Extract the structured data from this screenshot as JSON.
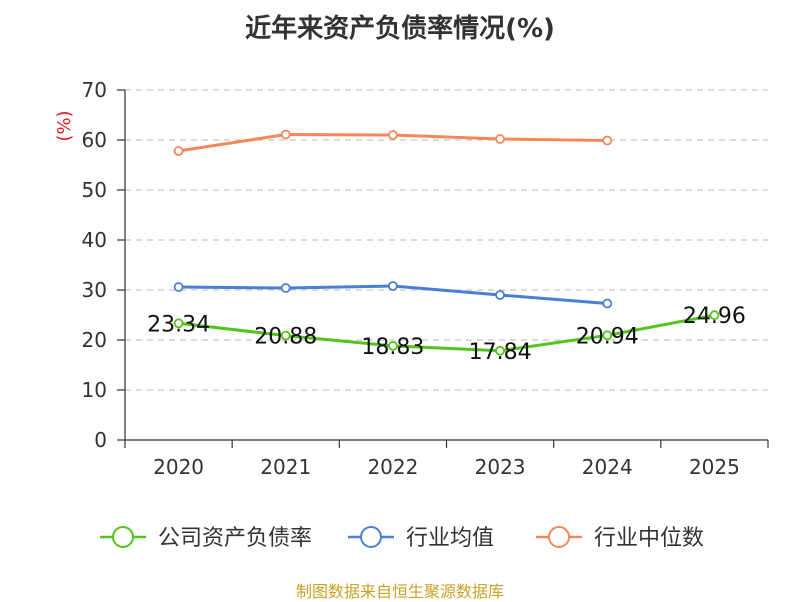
{
  "title": "近年来资产负债率情况(%)",
  "source": "制图数据来自恒生聚源数据库",
  "colors": {
    "title": "#333333",
    "grid": "#c8c8c8",
    "axis": "#333333",
    "ylabel": "#e02020",
    "source": "#c9a227"
  },
  "chart_data": {
    "type": "line",
    "title": "近年来资产负债率情况(%)",
    "xlabel": "",
    "ylabel": "(%)",
    "categories": [
      "2020",
      "2021",
      "2022",
      "2023",
      "2024",
      "2025"
    ],
    "ylim": [
      0,
      70
    ],
    "yticks": [
      0,
      10,
      20,
      30,
      40,
      50,
      60,
      70
    ],
    "grid": "horizontal dashed",
    "legend_position": "bottom",
    "series": [
      {
        "name": "公司资产负债率",
        "color": "#52c41a",
        "values": [
          23.34,
          20.88,
          18.83,
          17.84,
          20.94,
          24.96
        ],
        "labels": [
          "23.34",
          "20.88",
          "18.83",
          "17.84",
          "20.94",
          "24.96"
        ]
      },
      {
        "name": "行业均值",
        "color": "#4a7fd6",
        "values": [
          30.6,
          30.4,
          30.8,
          29.0,
          27.3,
          null
        ]
      },
      {
        "name": "行业中位数",
        "color": "#f5875a",
        "values": [
          57.8,
          61.1,
          61.0,
          60.2,
          59.9,
          null
        ]
      }
    ]
  }
}
